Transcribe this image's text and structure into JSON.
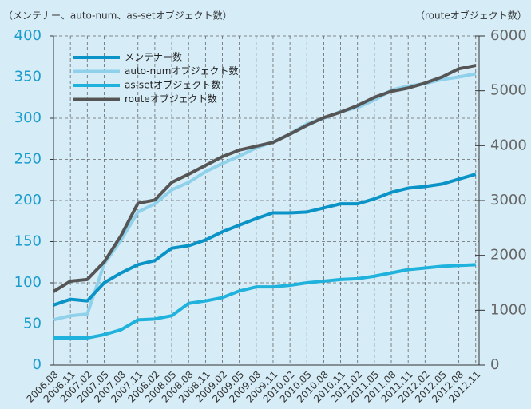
{
  "chart_data": {
    "type": "line",
    "title": "（メンテナー、auto-num、as-setオブジェクト数）",
    "y2_title": "（routeオブジェクト数）",
    "categories": [
      "2006.08",
      "2006.11",
      "2007.02",
      "2007.05",
      "2007.08",
      "2007.11",
      "2008.02",
      "2008.05",
      "2008.08",
      "2008.11",
      "2009.02",
      "2009.05",
      "2009.08",
      "2009.11",
      "2010.02",
      "2010.05",
      "2010.08",
      "2010.11",
      "2011.02",
      "2011.05",
      "2011.08",
      "2011.11",
      "2012.02",
      "2012.05",
      "2012.08",
      "2012.11"
    ],
    "series": [
      {
        "name": "メンテナー数",
        "color": "#0a93c6",
        "values": [
          73,
          80,
          78,
          100,
          112,
          122,
          127,
          142,
          145,
          152,
          162,
          170,
          178,
          185,
          185,
          186,
          191,
          196,
          196,
          202,
          210,
          215,
          217,
          220,
          226,
          232
        ]
      },
      {
        "name": "auto-numオブジェクト数",
        "color": "#8fd0ea",
        "values": [
          55,
          60,
          62,
          123,
          152,
          186,
          196,
          213,
          222,
          235,
          245,
          254,
          264,
          271,
          281,
          293,
          300,
          308,
          313,
          322,
          334,
          339,
          342,
          347,
          350,
          354
        ]
      },
      {
        "name": "as-setオブジェクト数",
        "color": "#1fb2dc",
        "values": [
          33,
          33,
          33,
          37,
          43,
          55,
          56,
          60,
          75,
          78,
          82,
          90,
          95,
          95,
          97,
          100,
          102,
          104,
          105,
          108,
          112,
          116,
          118,
          120,
          121,
          122
        ]
      },
      {
        "name": "routeオブジェクト数",
        "color": "#555555",
        "axis": "y2",
        "values": [
          1340,
          1530,
          1560,
          1880,
          2360,
          2950,
          3010,
          3330,
          3480,
          3640,
          3800,
          3920,
          3990,
          4060,
          4210,
          4370,
          4510,
          4610,
          4730,
          4880,
          4990,
          5050,
          5140,
          5250,
          5400,
          5460
        ]
      }
    ],
    "ylim": [
      0,
      400
    ],
    "yticks": [
      0,
      50,
      100,
      150,
      200,
      250,
      300,
      350,
      400
    ],
    "y2lim": [
      0,
      6000
    ],
    "y2ticks": [
      0,
      1000,
      2000,
      3000,
      4000,
      5000,
      6000
    ],
    "grid": true,
    "legend": "upper left"
  }
}
